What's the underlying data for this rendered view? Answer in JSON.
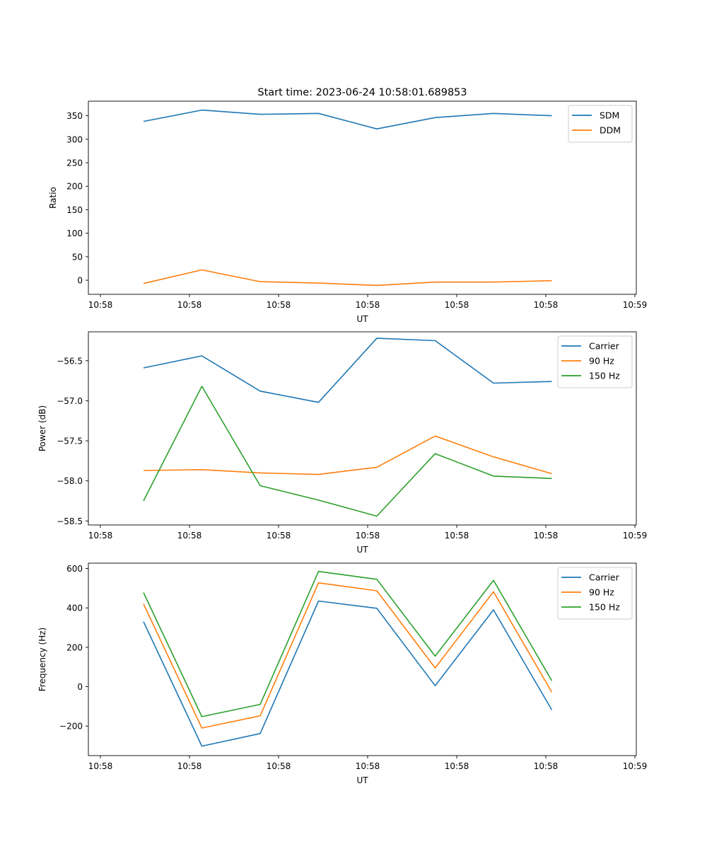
{
  "chart_data": [
    {
      "type": "line",
      "title": "Start time: 2023-06-24 10:58:01.689853",
      "xlabel": "UT",
      "ylabel": "Ratio",
      "x_tick_labels": [
        "10:58",
        "10:58",
        "10:58",
        "10:58",
        "10:58",
        "10:58",
        "10:59"
      ],
      "y_ticks": [
        0,
        50,
        100,
        150,
        200,
        250,
        300,
        350
      ],
      "ylim": [
        -30,
        381
      ],
      "grid": false,
      "legend": "top-right",
      "series": [
        {
          "name": "SDM",
          "color": "#1f77b4",
          "values": [
            338,
            362,
            353,
            355,
            322,
            346,
            355,
            350
          ]
        },
        {
          "name": "DDM",
          "color": "#ff7f0e",
          "values": [
            -7,
            22,
            -3,
            -6,
            -11,
            -4,
            -4,
            -1
          ]
        }
      ]
    },
    {
      "type": "line",
      "title": "",
      "xlabel": "UT",
      "ylabel": "Power (dB)",
      "x_tick_labels": [
        "10:58",
        "10:58",
        "10:58",
        "10:58",
        "10:58",
        "10:58",
        "10:59"
      ],
      "y_ticks": [
        -58.5,
        -58.0,
        -57.5,
        -57.0,
        -56.5
      ],
      "y_tick_labels": [
        "−58.5",
        "−58.0",
        "−57.5",
        "−57.0",
        "−56.5"
      ],
      "ylim": [
        -58.55,
        -56.14
      ],
      "grid": false,
      "legend": "top-right",
      "series": [
        {
          "name": "Carrier",
          "color": "#1f77b4",
          "values": [
            -56.59,
            -56.44,
            -56.88,
            -57.02,
            -56.22,
            -56.25,
            -56.78,
            -56.76
          ]
        },
        {
          "name": "90 Hz",
          "color": "#ff7f0e",
          "values": [
            -57.87,
            -57.86,
            -57.9,
            -57.92,
            -57.83,
            -57.44,
            -57.7,
            -57.91
          ]
        },
        {
          "name": "150 Hz",
          "color": "#2ca02c",
          "values": [
            -58.25,
            -56.82,
            -58.06,
            -58.24,
            -58.44,
            -57.66,
            -57.94,
            -57.97
          ]
        }
      ]
    },
    {
      "type": "line",
      "title": "",
      "xlabel": "UT",
      "ylabel": "Frequency (Hz)",
      "x_tick_labels": [
        "10:58",
        "10:58",
        "10:58",
        "10:58",
        "10:58",
        "10:58",
        "10:59"
      ],
      "y_ticks": [
        -200,
        0,
        200,
        400,
        600
      ],
      "y_tick_labels": [
        "−200",
        "0",
        "200",
        "400",
        "600"
      ],
      "ylim": [
        -350,
        627
      ],
      "grid": false,
      "legend": "top-right",
      "series": [
        {
          "name": "Carrier",
          "color": "#1f77b4",
          "values": [
            330,
            -302,
            -238,
            435,
            398,
            5,
            390,
            -118
          ]
        },
        {
          "name": "90 Hz",
          "color": "#ff7f0e",
          "values": [
            420,
            -210,
            -148,
            527,
            487,
            95,
            482,
            -28
          ]
        },
        {
          "name": "150 Hz",
          "color": "#2ca02c",
          "values": [
            478,
            -152,
            -90,
            585,
            545,
            155,
            540,
            30
          ]
        }
      ]
    }
  ]
}
